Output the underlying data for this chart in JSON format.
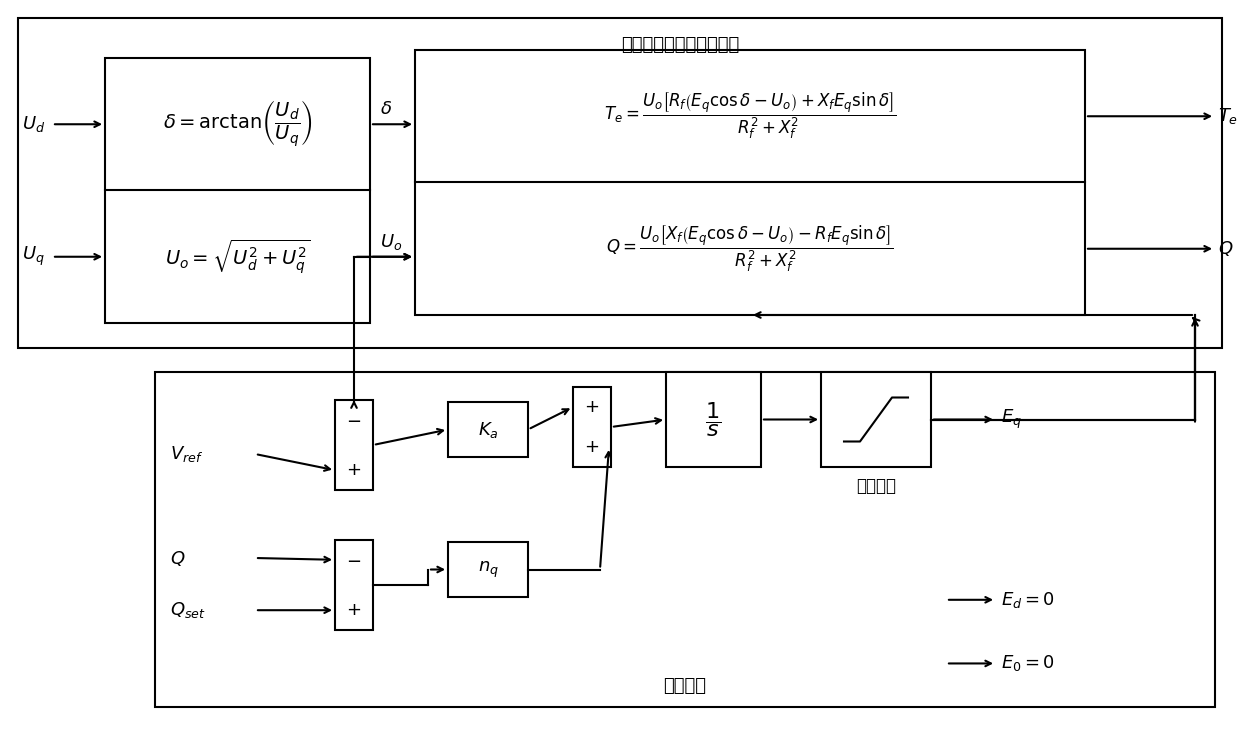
{
  "title_top": "逆变器输出功率计算方程",
  "title_bottom": "电压控制",
  "formula_Te": "$T_e=\\dfrac{U_o\\left[R_f\\left(E_q\\cos\\delta-U_o\\right)+X_f E_q\\sin\\delta\\right]}{R_f^2+X_f^2}$",
  "formula_Q": "$Q=\\dfrac{U_o\\left[X_f\\left(E_q\\cos\\delta-U_o\\right)-R_f E_q\\sin\\delta\\right]}{R_f^2+X_f^2}$",
  "formula_delta": "$\\delta=\\arctan\\!\\left(\\dfrac{U_d}{U_q}\\right)$",
  "formula_Uo": "$U_o=\\sqrt{U_d^2+U_q^2}$",
  "label_Ud": "$U_d$",
  "label_Uq": "$U_q$",
  "label_delta": "$\\delta$",
  "label_Uo": "$U_o$",
  "label_Te": "$T_e$",
  "label_Q_out": "$Q$",
  "label_Eq": "$E_q$",
  "label_Ed0": "$E_d=0$",
  "label_E00": "$E_0=0$",
  "label_Vref": "$V_{ref}$",
  "label_Q": "$Q$",
  "label_Qset": "$Q_{set}$",
  "label_Ka": "$K_a$",
  "label_nq": "$n_q$",
  "label_integrator": "$\\dfrac{1}{s}$",
  "label_limiter": "限幅环节",
  "lw": 1.5,
  "fs_label": 13,
  "fs_formula": 12,
  "fs_title": 13,
  "fs_block": 13
}
